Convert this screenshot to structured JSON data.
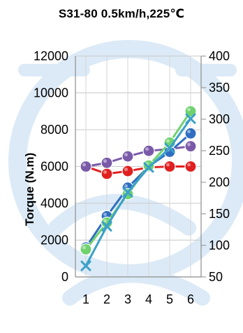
{
  "chart_data": {
    "type": "line",
    "title": "S31-80 0.5km/h,225℃",
    "ylabel": "Torque (N.m)",
    "categories": [
      "1",
      "2",
      "3",
      "4",
      "5",
      "6"
    ],
    "y_left": {
      "min": 0,
      "max": 12000,
      "ticks": [
        "0",
        "2000",
        "4000",
        "6000",
        "8000",
        "10000",
        "12000"
      ]
    },
    "y_right": {
      "min": 50,
      "max": 400,
      "ticks": [
        "50",
        "100",
        "150",
        "200",
        "250",
        "300",
        "350",
        "400"
      ]
    },
    "grid": true,
    "legend": "none",
    "series": [
      {
        "axis": "left",
        "color": "#e02020",
        "marker": "circle",
        "values": [
          6000,
          5600,
          5750,
          5950,
          6000,
          6000
        ]
      },
      {
        "axis": "left",
        "color": "#7a5aa8",
        "marker": "circle",
        "values": [
          6000,
          6200,
          6550,
          6850,
          6950,
          7100
        ]
      },
      {
        "axis": "left",
        "color": "#2f6ec0",
        "marker": "circle",
        "values": [
          1600,
          3300,
          4850,
          6000,
          6800,
          7800
        ]
      },
      {
        "axis": "left",
        "color": "#6fd26f",
        "marker": "circle",
        "values": [
          1500,
          2950,
          4500,
          6050,
          7300,
          9000
        ]
      },
      {
        "axis": "left",
        "color": "#3aa0c8",
        "marker": "x",
        "values": [
          600,
          2750,
          4600,
          5950,
          7000,
          8600
        ]
      }
    ]
  }
}
